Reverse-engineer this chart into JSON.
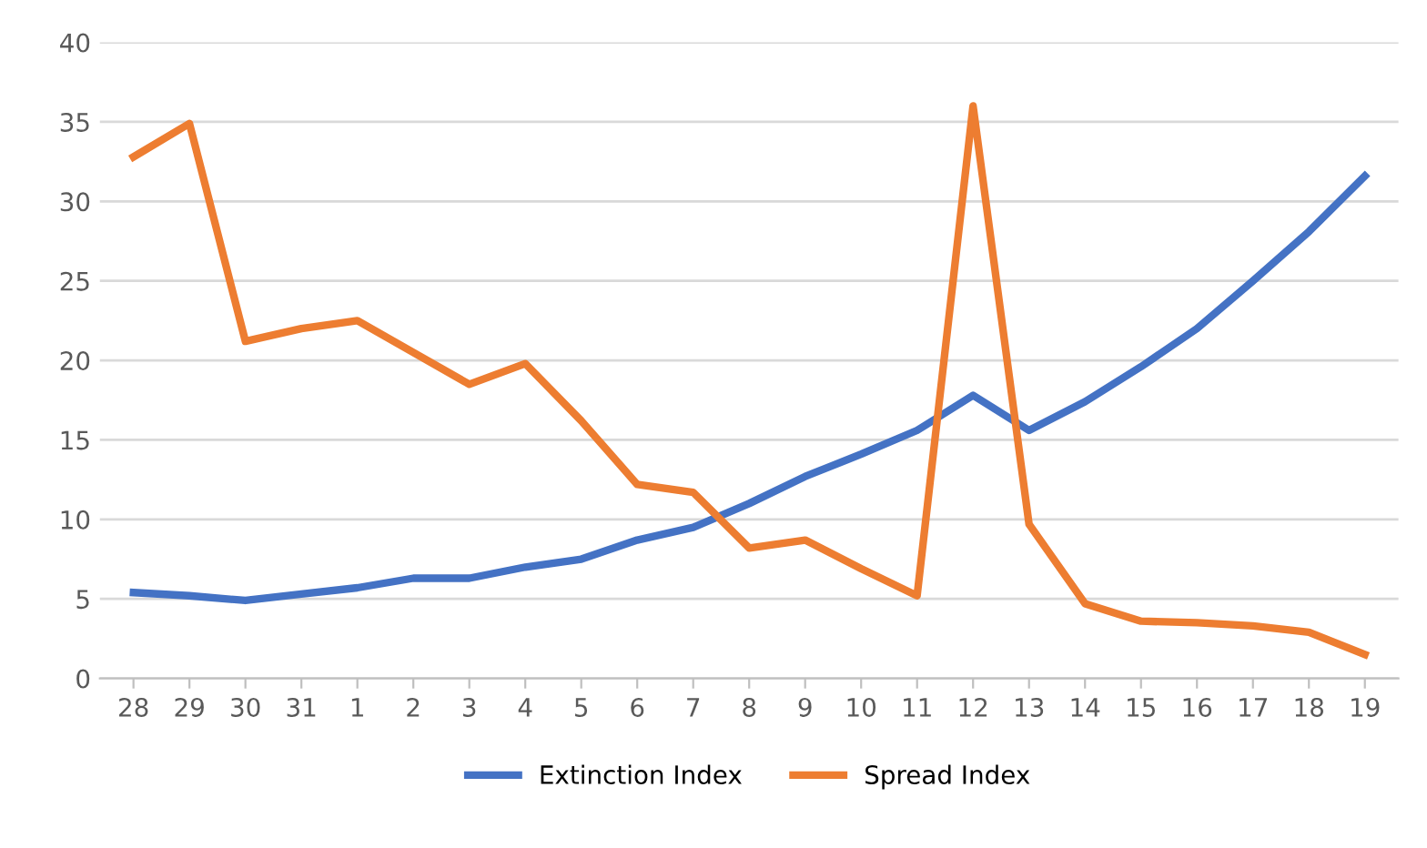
{
  "chart_data": {
    "type": "line",
    "categories": [
      "28",
      "29",
      "30",
      "31",
      "1",
      "2",
      "3",
      "4",
      "5",
      "6",
      "7",
      "8",
      "9",
      "10",
      "11",
      "12",
      "13",
      "14",
      "15",
      "16",
      "17",
      "18",
      "19"
    ],
    "series": [
      {
        "name": "Extinction Index",
        "color": "#4472c4",
        "values": [
          5.4,
          5.2,
          4.9,
          5.3,
          5.7,
          6.3,
          6.3,
          7.0,
          7.5,
          8.7,
          9.5,
          11.0,
          12.7,
          14.1,
          15.6,
          17.8,
          15.6,
          17.4,
          19.6,
          22.0,
          25.0,
          28.1,
          31.6
        ]
      },
      {
        "name": "Spread Index",
        "color": "#ed7d31",
        "values": [
          32.8,
          34.9,
          21.2,
          22.0,
          22.5,
          20.5,
          18.5,
          19.8,
          16.2,
          12.2,
          11.7,
          8.2,
          8.7,
          6.9,
          5.2,
          36.0,
          9.7,
          4.7,
          3.6,
          3.5,
          3.3,
          2.9,
          1.5
        ]
      }
    ],
    "ylim": [
      0,
      40
    ],
    "yticks": [
      0,
      5,
      10,
      15,
      20,
      25,
      30,
      35,
      40
    ],
    "grid": "y",
    "legend": "bottom",
    "marker": "none",
    "line_style": "solid"
  }
}
